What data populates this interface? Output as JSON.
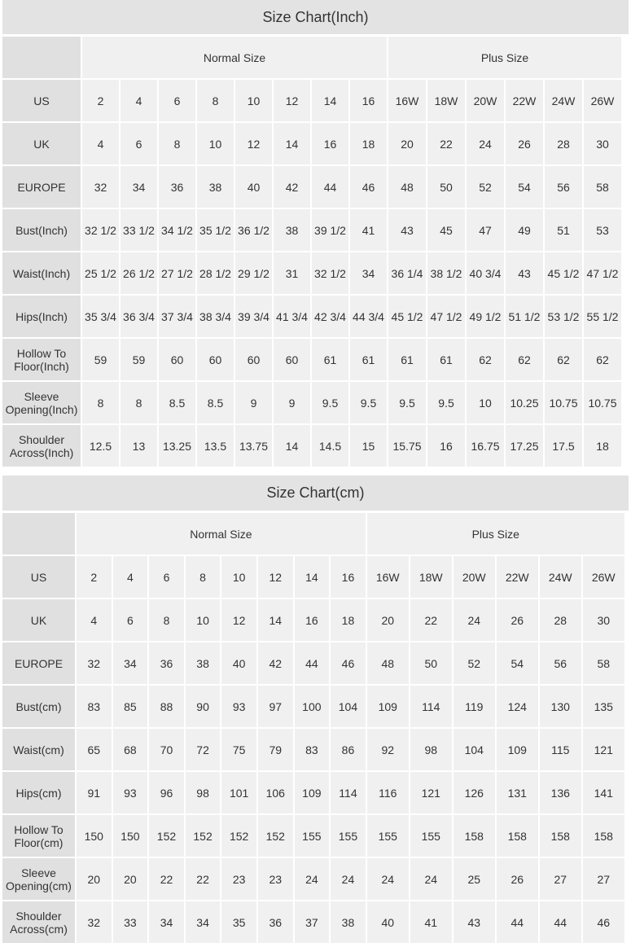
{
  "tables": [
    {
      "title": "Size Chart(Inch)",
      "groups": [
        "Normal Size",
        "Plus Size"
      ],
      "rows": [
        {
          "label": "US",
          "values": [
            "2",
            "4",
            "6",
            "8",
            "10",
            "12",
            "14",
            "16",
            "16W",
            "18W",
            "20W",
            "22W",
            "24W",
            "26W"
          ]
        },
        {
          "label": "UK",
          "values": [
            "4",
            "6",
            "8",
            "10",
            "12",
            "14",
            "16",
            "18",
            "20",
            "22",
            "24",
            "26",
            "28",
            "30"
          ]
        },
        {
          "label": "EUROPE",
          "values": [
            "32",
            "34",
            "36",
            "38",
            "40",
            "42",
            "44",
            "46",
            "48",
            "50",
            "52",
            "54",
            "56",
            "58"
          ]
        },
        {
          "label": "Bust(Inch)",
          "values": [
            "32 1/2",
            "33 1/2",
            "34 1/2",
            "35 1/2",
            "36 1/2",
            "38",
            "39 1/2",
            "41",
            "43",
            "45",
            "47",
            "49",
            "51",
            "53"
          ]
        },
        {
          "label": "Waist(Inch)",
          "values": [
            "25 1/2",
            "26 1/2",
            "27 1/2",
            "28 1/2",
            "29 1/2",
            "31",
            "32 1/2",
            "34",
            "36 1/4",
            "38 1/2",
            "40 3/4",
            "43",
            "45 1/2",
            "47 1/2"
          ]
        },
        {
          "label": "Hips(Inch)",
          "values": [
            "35 3/4",
            "36 3/4",
            "37 3/4",
            "38 3/4",
            "39 3/4",
            "41 3/4",
            "42 3/4",
            "44 3/4",
            "45 1/2",
            "47 1/2",
            "49 1/2",
            "51 1/2",
            "53 1/2",
            "55 1/2"
          ]
        },
        {
          "label": "Hollow To Floor(Inch)",
          "values": [
            "59",
            "59",
            "60",
            "60",
            "60",
            "60",
            "61",
            "61",
            "61",
            "61",
            "62",
            "62",
            "62",
            "62"
          ]
        },
        {
          "label": "Sleeve Opening(Inch)",
          "values": [
            "8",
            "8",
            "8.5",
            "8.5",
            "9",
            "9",
            "9.5",
            "9.5",
            "9.5",
            "9.5",
            "10",
            "10.25",
            "10.75",
            "10.75"
          ]
        },
        {
          "label": "Shoulder Across(Inch)",
          "values": [
            "12.5",
            "13",
            "13.25",
            "13.5",
            "13.75",
            "14",
            "14.5",
            "15",
            "15.75",
            "16",
            "16.75",
            "17.25",
            "17.5",
            "18"
          ]
        }
      ]
    },
    {
      "title": "Size Chart(cm)",
      "groups": [
        "Normal Size",
        "Plus Size"
      ],
      "rows": [
        {
          "label": "US",
          "values": [
            "2",
            "4",
            "6",
            "8",
            "10",
            "12",
            "14",
            "16",
            "16W",
            "18W",
            "20W",
            "22W",
            "24W",
            "26W"
          ]
        },
        {
          "label": "UK",
          "values": [
            "4",
            "6",
            "8",
            "10",
            "12",
            "14",
            "16",
            "18",
            "20",
            "22",
            "24",
            "26",
            "28",
            "30"
          ]
        },
        {
          "label": "EUROPE",
          "values": [
            "32",
            "34",
            "36",
            "38",
            "40",
            "42",
            "44",
            "46",
            "48",
            "50",
            "52",
            "54",
            "56",
            "58"
          ]
        },
        {
          "label": "Bust(cm)",
          "values": [
            "83",
            "85",
            "88",
            "90",
            "93",
            "97",
            "100",
            "104",
            "109",
            "114",
            "119",
            "124",
            "130",
            "135"
          ]
        },
        {
          "label": "Waist(cm)",
          "values": [
            "65",
            "68",
            "70",
            "72",
            "75",
            "79",
            "83",
            "86",
            "92",
            "98",
            "104",
            "109",
            "115",
            "121"
          ]
        },
        {
          "label": "Hips(cm)",
          "values": [
            "91",
            "93",
            "96",
            "98",
            "101",
            "106",
            "109",
            "114",
            "116",
            "121",
            "126",
            "131",
            "136",
            "141"
          ]
        },
        {
          "label": "Hollow To Floor(cm)",
          "values": [
            "150",
            "150",
            "152",
            "152",
            "152",
            "152",
            "155",
            "155",
            "155",
            "155",
            "158",
            "158",
            "158",
            "158"
          ]
        },
        {
          "label": "Sleeve Opening(cm)",
          "values": [
            "20",
            "20",
            "22",
            "22",
            "23",
            "23",
            "24",
            "24",
            "24",
            "24",
            "25",
            "26",
            "27",
            "27"
          ]
        },
        {
          "label": "Shoulder Across(cm)",
          "values": [
            "32",
            "33",
            "34",
            "34",
            "35",
            "36",
            "37",
            "38",
            "40",
            "41",
            "43",
            "44",
            "44",
            "46"
          ]
        }
      ]
    }
  ]
}
